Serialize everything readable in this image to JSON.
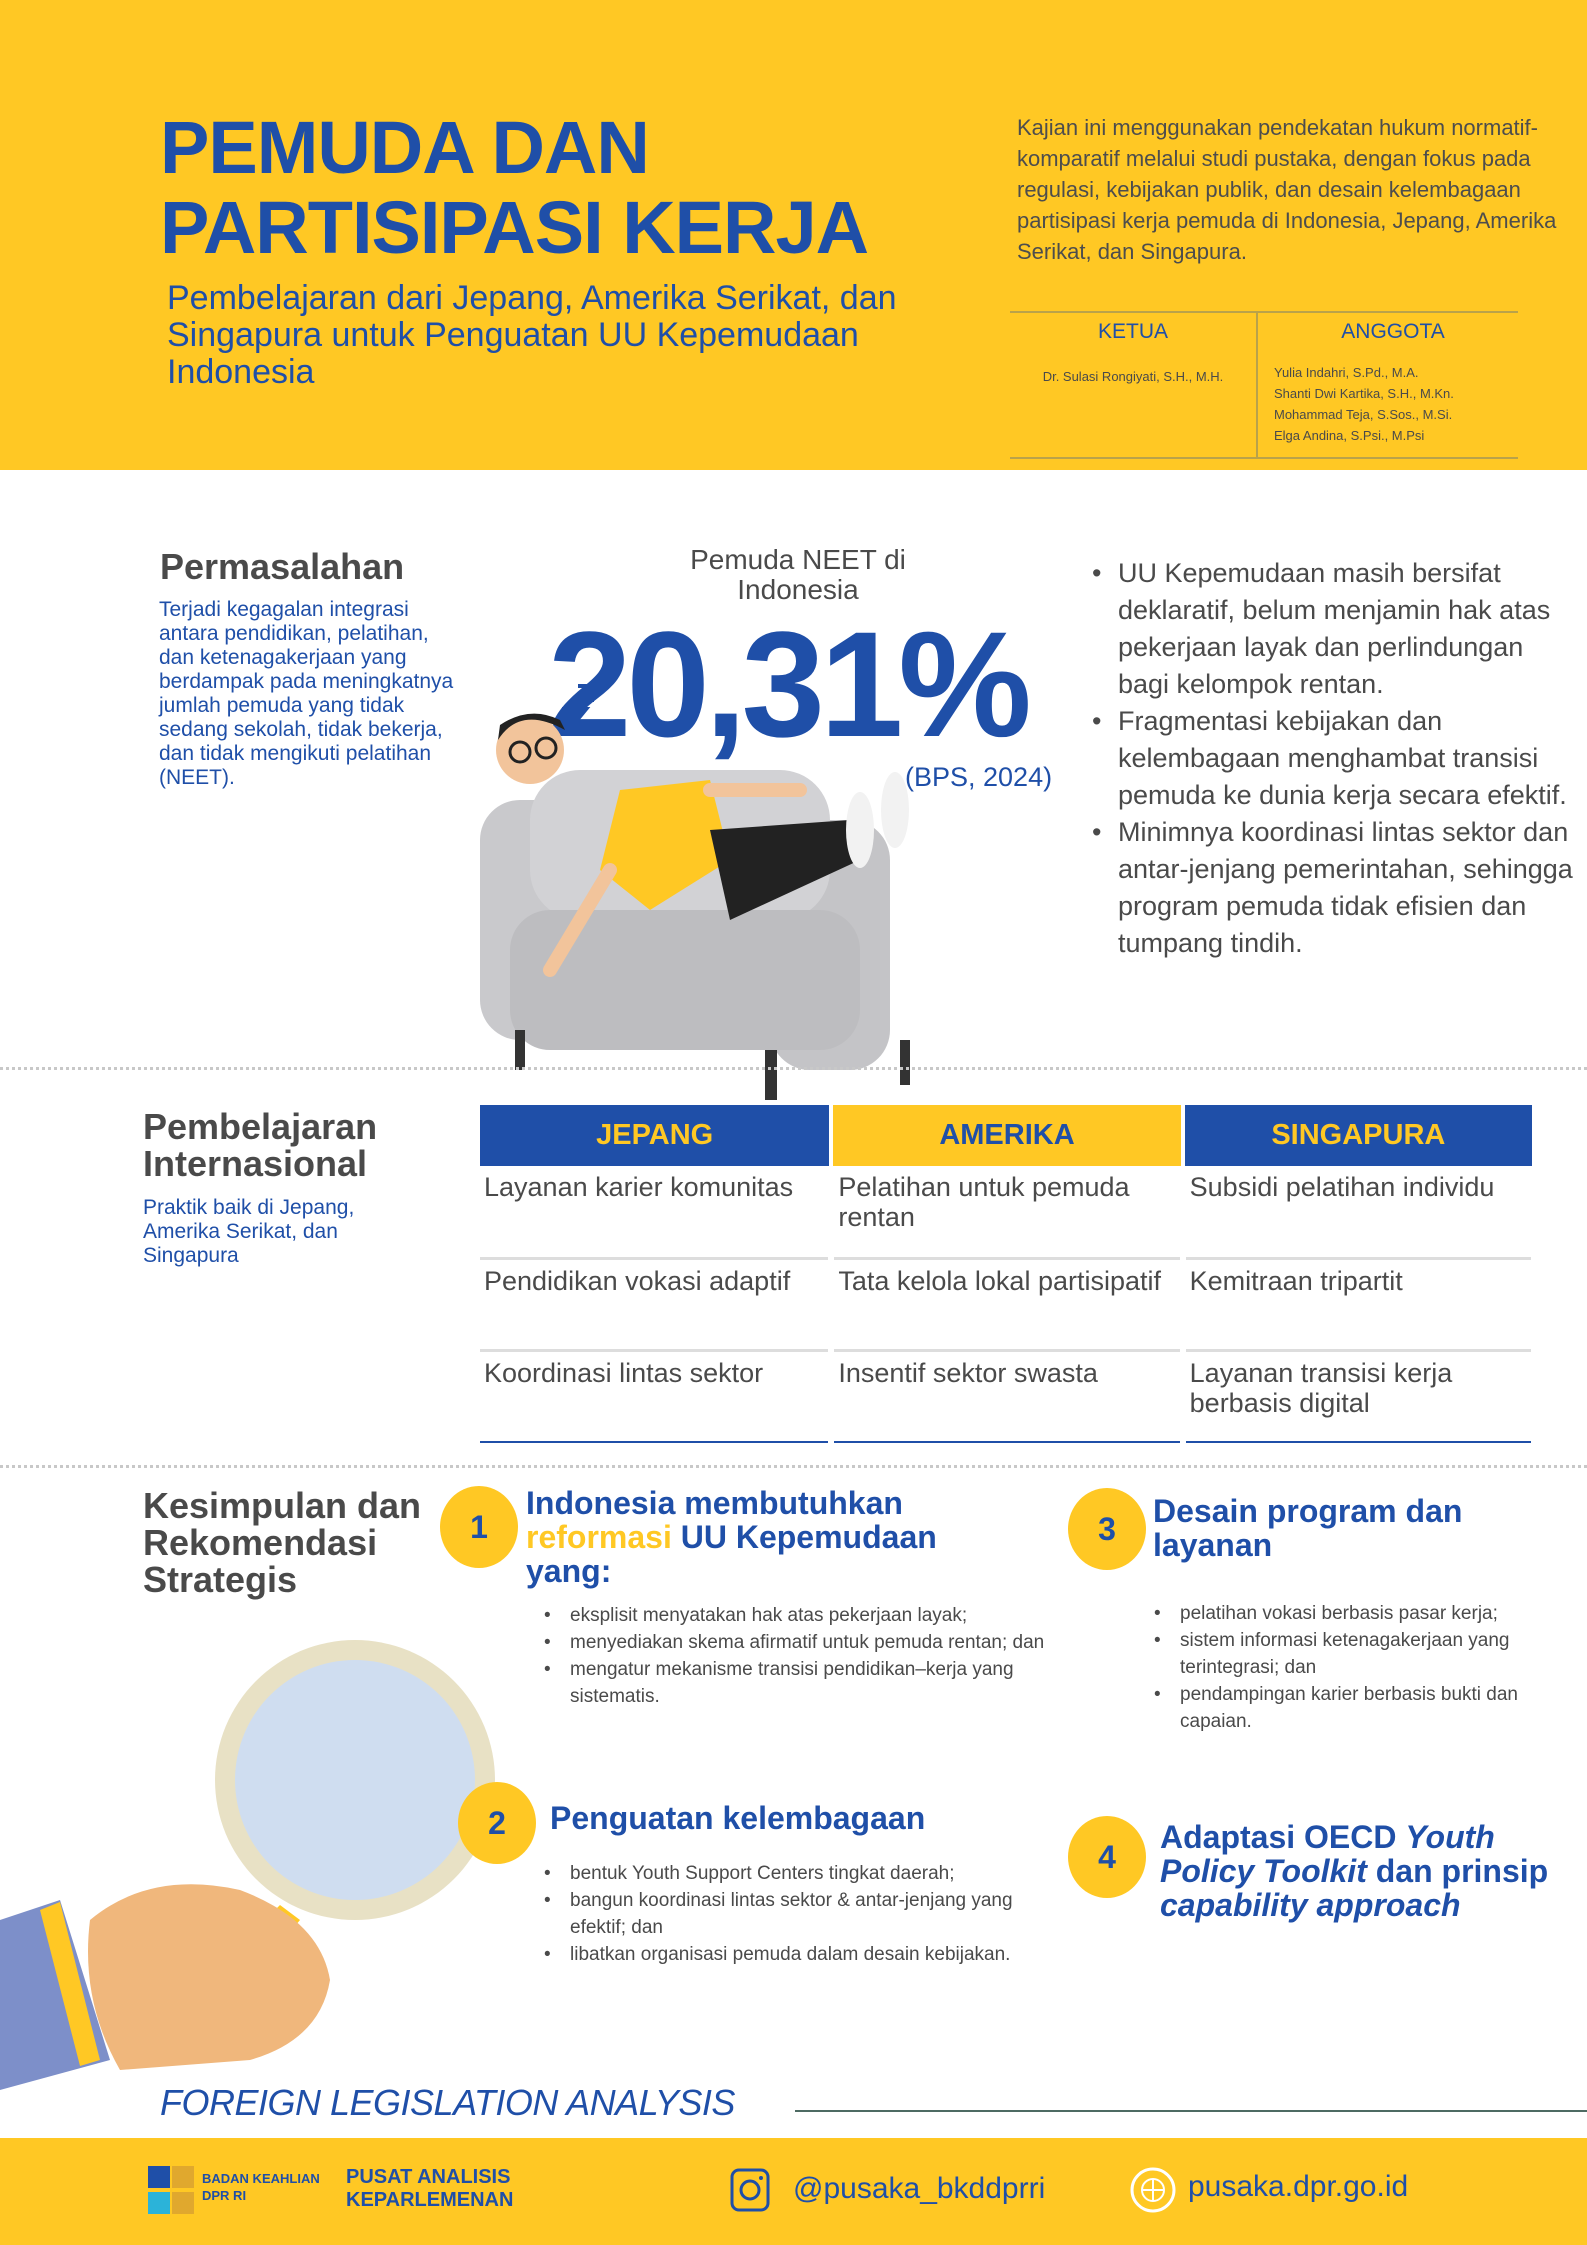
{
  "header": {
    "title_lines": [
      "PEMUDA DAN",
      "PARTISIPASI KERJA"
    ],
    "subtitle": "Pembelajaran dari Jepang, Amerika Serikat, dan Singapura untuk Penguatan UU Kepemudaan Indonesia",
    "intro": "Kajian ini menggunakan pendekatan hukum normatif-komparatif melalui studi pustaka, dengan fokus pada regulasi, kebijakan publik, dan desain kelembagaan partisipasi kerja pemuda di Indonesia, Jepang, Amerika Serikat, dan Singapura.",
    "team": {
      "chair_label": "KETUA",
      "chair": "Dr. Sulasi Rongiyati, S.H., M.H.",
      "members_label": "ANGGOTA",
      "members": [
        "Yulia Indahri, S.Pd., M.A.",
        "Shanti Dwi Kartika, S.H., M.Kn.",
        "Mohammad Teja, S.Sos., M.Si.",
        "Elga Andina, S.Psi., M.Psi"
      ]
    }
  },
  "problem": {
    "heading": "Permasalahan",
    "text": "Terjadi kegagalan integrasi antara pendidikan, pelatihan, dan ketenagakerjaan yang berdampak pada meningkatnya jumlah pemuda yang tidak sedang sekolah, tidak bekerja, dan tidak mengikuti pelatihan (NEET).",
    "neet_label": "Pemuda NEET di Indonesia",
    "neet_value": "20,31%",
    "neet_source": "(BPS, 2024)",
    "points": [
      "UU Kepemudaan masih bersifat deklaratif, belum menjamin hak atas pekerjaan layak dan perlindungan bagi kelompok rentan.",
      "Fragmentasi kebijakan dan kelembagaan menghambat transisi pemuda ke dunia kerja secara efektif.",
      "Minimnya koordinasi lintas sektor dan antar-jenjang pemerintahan, sehingga program pemuda tidak efisien dan tumpang tindih."
    ]
  },
  "learning": {
    "heading": "Pembelajaran Internasional",
    "text": "Praktik baik di Jepang, Amerika Serikat, dan Singapura",
    "columns": [
      "JEPANG",
      "AMERIKA",
      "SINGAPURA"
    ],
    "rows": [
      [
        "Layanan karier komunitas",
        "Pelatihan untuk pemuda rentan",
        "Subsidi pelatihan individu"
      ],
      [
        "Pendidikan vokasi adaptif",
        "Tata kelola lokal partisipatif",
        "Kemitraan tripartit"
      ],
      [
        "Koordinasi lintas sektor",
        "Insentif sektor swasta",
        "Layanan transisi kerja berbasis digital"
      ]
    ]
  },
  "conclusion": {
    "heading": "Kesimpulan dan Rekomendasi Strategis",
    "recs": [
      {
        "num": "1",
        "title_a": "Indonesia membutuhkan",
        "title_hl": "reformasi",
        "title_b": "UU Kepemudaan yang:",
        "bullets": [
          "eksplisit menyatakan hak atas pekerjaan layak;",
          "menyediakan skema afirmatif untuk pemuda rentan; dan",
          "mengatur mekanisme transisi pendidikan–kerja yang sistematis."
        ]
      },
      {
        "num": "2",
        "title": "Penguatan kelembagaan",
        "bullets": [
          "bentuk Youth Support Centers tingkat daerah;",
          "bangun koordinasi lintas sektor & antar-jenjang yang efektif; dan",
          "libatkan organisasi pemuda dalam desain kebijakan."
        ]
      },
      {
        "num": "3",
        "title": "Desain program dan layanan",
        "bullets": [
          "pelatihan vokasi berbasis pasar kerja;",
          "sistem informasi ketenagakerjaan yang terintegrasi; dan",
          "pendampingan karier berbasis bukti dan capaian."
        ]
      },
      {
        "num": "4",
        "title_a": "Adaptasi OECD",
        "title_i1": "Youth Policy Toolkit",
        "title_b": "dan prinsip",
        "title_i2": "capability approach"
      }
    ]
  },
  "footer": {
    "series": "FOREIGN LEGISLATION ANALYSIS",
    "logo_text": [
      "BADAN KEAHLIAN",
      "DPR RI"
    ],
    "unit": [
      "PUSAT ANALISIS",
      "KEPARLEMENAN"
    ],
    "instagram": "@pusaka_bkddprri",
    "website": "pusaka.dpr.go.id"
  },
  "colors": {
    "brand_blue": "#1f4fa8",
    "brand_yellow": "#ffc824"
  }
}
